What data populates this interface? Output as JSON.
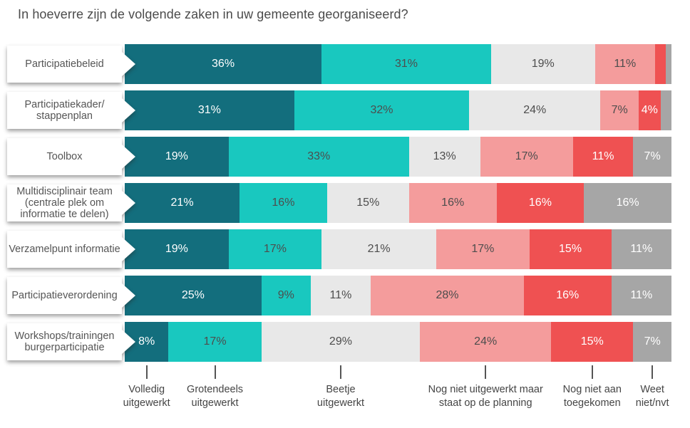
{
  "chart_data": {
    "type": "stacked_bar_horizontal",
    "title": "In hoeverre zijn de volgende zaken in uw gemeente georganiseerd?",
    "x_axis": {
      "min": 0,
      "max": 100,
      "unit": "%",
      "grid": false,
      "ticks_visible": false
    },
    "legend_position": "bottom",
    "legend": [
      {
        "label": "Volledig uitgewerkt",
        "lines": "Volledig\nuitgewerkt",
        "color": "#136e7d",
        "value_text_color": "#ffffff"
      },
      {
        "label": "Grotendeels uitgewerkt",
        "lines": "Grotendeels\nuitgewerkt",
        "color": "#19c8bf",
        "value_text_color": "#4d4d4d"
      },
      {
        "label": "Beetje uitgewerkt",
        "lines": "Beetje\nuitgewerkt",
        "color": "#e8e8e8",
        "value_text_color": "#4d4d4d"
      },
      {
        "label": "Nog niet uitgewerkt maar staat op de planning",
        "lines": "Nog niet uitgewerkt maar\nstaat op de planning",
        "color": "#f49c9c",
        "value_text_color": "#4d4d4d"
      },
      {
        "label": "Nog niet aan toegekomen",
        "lines": "Nog niet aan\ntoegekomen",
        "color": "#ef5152",
        "value_text_color": "#ffffff"
      },
      {
        "label": "Weet niet/nvt",
        "lines": "Weet\nniet/nvt",
        "color": "#a6a6a6",
        "value_text_color": "#ffffff"
      }
    ],
    "rows": [
      {
        "category": "Participatiebeleid",
        "category_lines": "Participatiebeleid",
        "values": [
          36,
          31,
          19,
          11,
          2,
          1
        ],
        "labels": [
          "36%",
          "31%",
          "19%",
          "11%",
          "",
          ""
        ]
      },
      {
        "category": "Participatiekader/stappenplan",
        "category_lines": "Participatiekader/\nstappenplan",
        "values": [
          31,
          32,
          24,
          7,
          4,
          2
        ],
        "labels": [
          "31%",
          "32%",
          "24%",
          "7%",
          "4%",
          ""
        ]
      },
      {
        "category": "Toolbox",
        "category_lines": "Toolbox",
        "values": [
          19,
          33,
          13,
          17,
          11,
          7
        ],
        "labels": [
          "19%",
          "33%",
          "13%",
          "17%",
          "11%",
          "7%"
        ]
      },
      {
        "category": "Multidisciplinair team (centrale plek om informatie te delen)",
        "category_lines": "Multidisciplinair team\n(centrale plek om\ninformatie te delen)",
        "values": [
          21,
          16,
          15,
          16,
          16,
          16
        ],
        "labels": [
          "21%",
          "16%",
          "15%",
          "16%",
          "16%",
          "16%"
        ]
      },
      {
        "category": "Verzamelpunt informatie",
        "category_lines": "Verzamelpunt informatie",
        "values": [
          19,
          17,
          21,
          17,
          15,
          11
        ],
        "labels": [
          "19%",
          "17%",
          "21%",
          "17%",
          "15%",
          "11%"
        ]
      },
      {
        "category": "Participatieverordening",
        "category_lines": "Participatieverordening",
        "values": [
          25,
          9,
          11,
          28,
          16,
          11
        ],
        "labels": [
          "25%",
          "9%",
          "11%",
          "28%",
          "16%",
          "11%"
        ]
      },
      {
        "category": "Workshops/trainingen burgerparticipatie",
        "category_lines": "Workshops/trainingen\nburgerparticipatie",
        "values": [
          8,
          17,
          29,
          24,
          15,
          7
        ],
        "labels": [
          "8%",
          "17%",
          "29%",
          "24%",
          "15%",
          "7%"
        ]
      }
    ]
  }
}
